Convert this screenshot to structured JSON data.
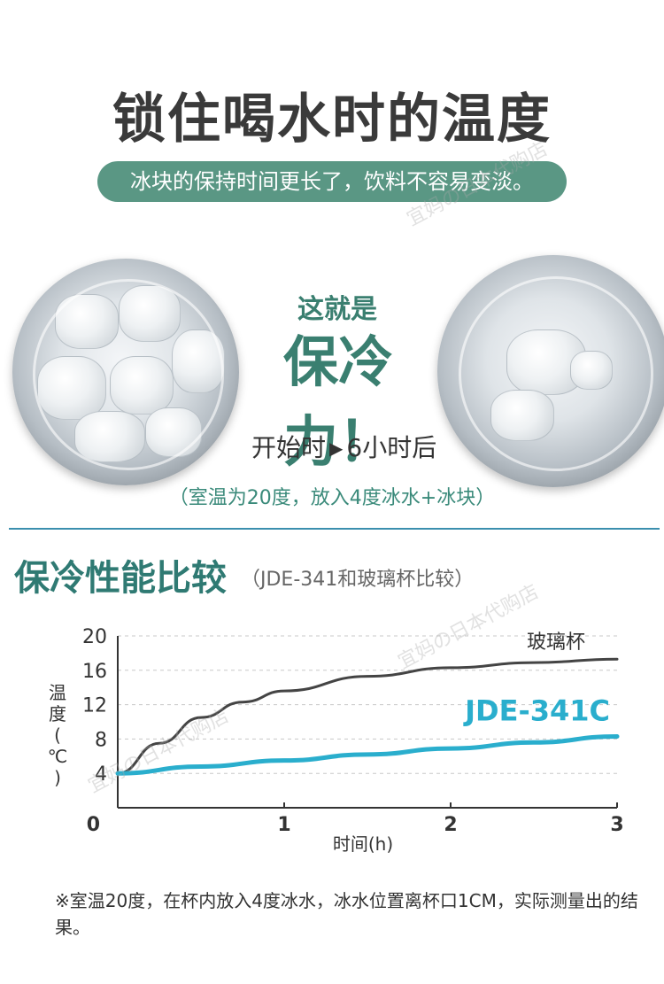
{
  "header": {
    "headline": "锁住喝水时的温度",
    "subheadline": "冰块的保持时间更长了，饮料不容易变淡。"
  },
  "comparison": {
    "callout_small": "这就是",
    "callout_big": "保冷力！",
    "label_start": "开始时",
    "label_after": "6小时后",
    "condition": "（室温为20度，放入4度冰水+冰块）"
  },
  "section": {
    "title": "保冷性能比较",
    "subtitle": "（JDE-341和玻璃杯比较）"
  },
  "chart_data": {
    "type": "line",
    "xlabel": "时间(h)",
    "ylabel": "温度(℃)",
    "xlim": [
      0,
      3
    ],
    "ylim": [
      0,
      20
    ],
    "x_ticks": [
      0,
      1,
      2,
      3
    ],
    "y_ticks": [
      4,
      8,
      12,
      16,
      20
    ],
    "grid": "horizontal-dashed",
    "series": [
      {
        "name": "玻璃杯",
        "color": "#444444",
        "x": [
          0,
          0.25,
          0.5,
          0.75,
          1,
          1.5,
          2,
          2.5,
          3
        ],
        "y": [
          4,
          7.5,
          10.5,
          12.3,
          13.6,
          15.3,
          16.3,
          16.9,
          17.3
        ]
      },
      {
        "name": "JDE-341C",
        "color": "#2aaecd",
        "x": [
          0,
          0.5,
          1,
          1.5,
          2,
          2.5,
          3
        ],
        "y": [
          4,
          4.8,
          5.5,
          6.2,
          6.9,
          7.6,
          8.3
        ]
      }
    ]
  },
  "footnote": "※室温20度，在杯内放入4度冰水，冰水位置离杯口1CM，实际测量出的结果。",
  "watermark": "宜妈の日本代购店"
}
